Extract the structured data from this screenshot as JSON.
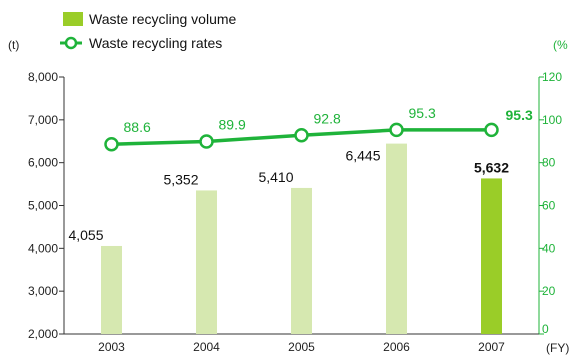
{
  "chart_data": {
    "type": "bar+line",
    "categories": [
      "2003",
      "2004",
      "2005",
      "2006",
      "2007"
    ],
    "series": [
      {
        "name": "Waste recycling volume",
        "kind": "bar",
        "axis": "left",
        "values": [
          4055,
          5352,
          5410,
          6445,
          5632
        ],
        "labels": [
          "4,055",
          "5,352",
          "5,410",
          "6,445",
          "5,632"
        ],
        "colors": [
          "#d6e8b0",
          "#d6e8b0",
          "#d6e8b0",
          "#d6e8b0",
          "#9acd28"
        ]
      },
      {
        "name": "Waste recycling rates",
        "kind": "line",
        "axis": "right",
        "values": [
          88.6,
          89.9,
          92.8,
          95.3,
          95.3
        ],
        "labels": [
          "88.6",
          "89.9",
          "92.8",
          "95.3",
          "95.3"
        ],
        "color": "#1fb33a"
      }
    ],
    "left_axis": {
      "unit": "(t)",
      "ylim": [
        2000,
        8000
      ],
      "ticks": [
        2000,
        3000,
        4000,
        5000,
        6000,
        7000,
        8000
      ],
      "tick_labels": [
        "2,000",
        "3,000",
        "4,000",
        "5,000",
        "6,000",
        "7,000",
        "8,000"
      ]
    },
    "right_axis": {
      "unit": "(%",
      "ylim": [
        0,
        120
      ],
      "ticks": [
        0,
        20,
        40,
        60,
        80,
        100,
        120
      ],
      "tick_labels": [
        "0",
        "20",
        "40",
        "60",
        "80",
        "100",
        "120"
      ]
    },
    "x_unit": "(FY)",
    "highlight_index": 4,
    "legend_position": "top-left",
    "grid": false
  },
  "colors": {
    "axis": "#333333",
    "line": "#1fb33a",
    "bar": "#d6e8b0",
    "bar_highlight": "#9acd28"
  }
}
